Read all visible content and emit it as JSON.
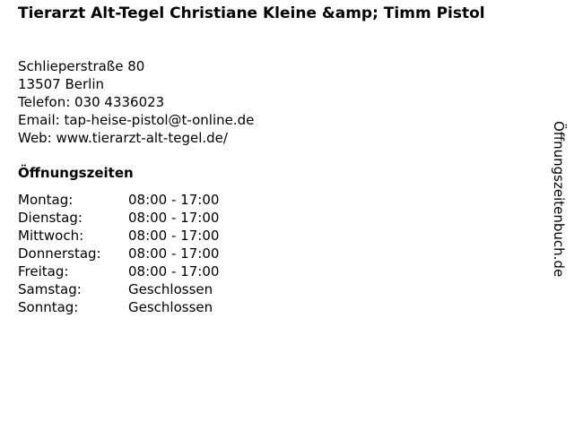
{
  "title": "Tierarzt Alt-Tegel Christiane Kleine &amp; Timm Pistol",
  "address": {
    "street": "Schlieperstraße 80",
    "city": "13507 Berlin",
    "phone": "Telefon: 030 4336023",
    "email": "Email: tap-heise-pistol@t-online.de",
    "web": "Web: www.tierarzt-alt-tegel.de/"
  },
  "hours_heading": "Öffnungszeiten",
  "hours": [
    {
      "day": "Montag:",
      "time": "08:00 - 17:00"
    },
    {
      "day": "Dienstag:",
      "time": "08:00 - 17:00"
    },
    {
      "day": "Mittwoch:",
      "time": "08:00 - 17:00"
    },
    {
      "day": "Donnerstag:",
      "time": "08:00 - 17:00"
    },
    {
      "day": "Freitag:",
      "time": "08:00 - 17:00"
    },
    {
      "day": "Samstag:",
      "time": "Geschlossen"
    },
    {
      "day": "Sonntag:",
      "time": "Geschlossen"
    }
  ],
  "brand": "Öffnungszeitenbuch.de"
}
